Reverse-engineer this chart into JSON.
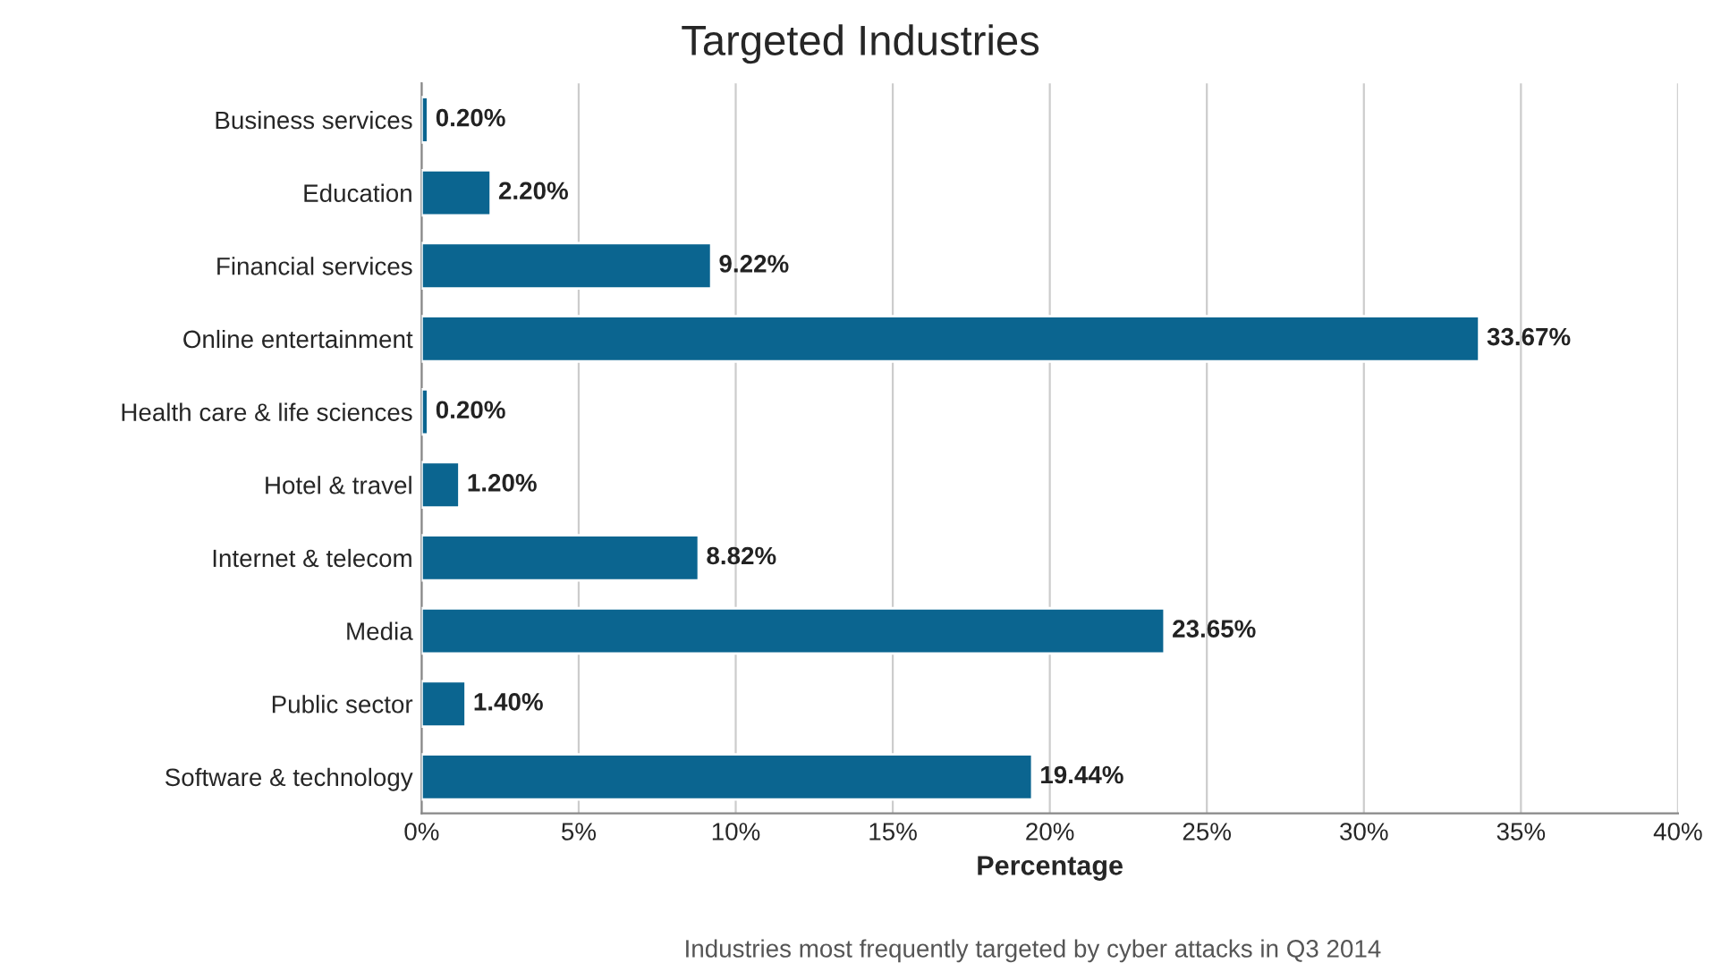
{
  "chart_data": {
    "type": "bar",
    "orientation": "horizontal",
    "title": "Targeted Industries",
    "xlabel": "Percentage",
    "annotations": [
      "Industries most frequently targeted by cyber attacks in Q3 2014"
    ],
    "categories": [
      "Business services",
      "Education",
      "Financial services",
      "Online entertainment",
      "Health care & life sciences",
      "Hotel & travel",
      "Internet & telecom",
      "Media",
      "Public sector",
      "Software & technology"
    ],
    "values": [
      0.2,
      2.2,
      9.22,
      33.67,
      0.2,
      1.2,
      8.82,
      23.65,
      1.4,
      19.44
    ],
    "value_labels": [
      "0.20%",
      "2.20%",
      "9.22%",
      "33.67%",
      "0.20%",
      "1.20%",
      "8.82%",
      "23.65%",
      "1.40%",
      "19.44%"
    ],
    "color": "#0b6590",
    "xlim": [
      0,
      40
    ],
    "xticks": [
      {
        "value": 0,
        "label": "0%"
      },
      {
        "value": 5,
        "label": "5%"
      },
      {
        "value": 10,
        "label": "10%"
      },
      {
        "value": 15,
        "label": "15%"
      },
      {
        "value": 20,
        "label": "20%"
      },
      {
        "value": 25,
        "label": "25%"
      },
      {
        "value": 30,
        "label": "30%"
      },
      {
        "value": 35,
        "label": "35%"
      },
      {
        "value": 40,
        "label": "40%"
      }
    ],
    "grid": "x"
  }
}
